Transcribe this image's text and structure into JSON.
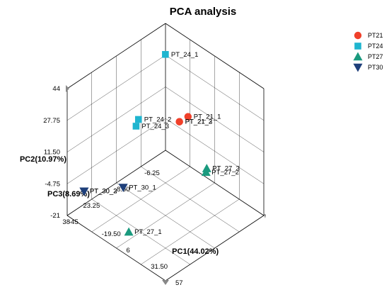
{
  "chart_data": {
    "type": "scatter",
    "title": "PCA analysis",
    "axes": {
      "pc1": {
        "label": "PC1(44.02%)",
        "range": [
          -45,
          57
        ],
        "ticks": [
          "-45",
          "-19.50",
          "6",
          "31.50",
          "57"
        ]
      },
      "pc2": {
        "label": "PC2(10.97%)",
        "range": [
          -21,
          44
        ],
        "ticks": [
          "-21",
          "-4.75",
          "11.50",
          "27.75",
          "44"
        ]
      },
      "pc3": {
        "label": "PC3(8.69%)",
        "range": [
          -21,
          38
        ],
        "ticks": [
          "-6.25",
          "8.50",
          "23.25",
          "38"
        ]
      }
    },
    "grid": true,
    "legend_position": "top-right",
    "series": [
      {
        "name": "PT21",
        "color": "#f0402a",
        "marker": "circle",
        "points": [
          {
            "label": "PT_21_1",
            "pc1": 6,
            "pc2": 22,
            "pc3": -5
          },
          {
            "label": "PT_21_2",
            "pc1": 4,
            "pc2": 21,
            "pc3": -1
          },
          {
            "label": "PT_21_3",
            "pc1": 4,
            "pc2": 21,
            "pc3": -1
          }
        ]
      },
      {
        "name": "PT24",
        "color": "#1fb5cf",
        "marker": "square",
        "points": [
          {
            "label": "PT_24_1",
            "pc1": -33,
            "pc2": 36,
            "pc3": -14
          },
          {
            "label": "PT_24_2",
            "pc1": -16,
            "pc2": 23,
            "pc3": 12
          },
          {
            "label": "PT_24_3",
            "pc1": -15,
            "pc2": 21,
            "pc3": 14
          }
        ]
      },
      {
        "name": "PT27",
        "color": "#1a9a7e",
        "marker": "triangle-up",
        "points": [
          {
            "label": "PT_27_1",
            "pc1": 12,
            "pc2": -13,
            "pc3": 34
          },
          {
            "label": "PT_27_2",
            "pc1": 42,
            "pc2": 11,
            "pc3": 5
          },
          {
            "label": "PT_27_3",
            "pc1": 41,
            "pc2": 12,
            "pc3": 4
          }
        ]
      },
      {
        "name": "PT30",
        "color": "#1e3f7a",
        "marker": "triangle-down",
        "points": [
          {
            "label": "PT_30_1",
            "pc1": -18,
            "pc2": -8,
            "pc3": 20
          },
          {
            "label": "PT_30_2",
            "pc1": -43,
            "pc2": -13,
            "pc3": 29
          },
          {
            "label": "PT_30_3",
            "pc1": -43,
            "pc2": -13,
            "pc3": 29
          }
        ]
      }
    ]
  }
}
